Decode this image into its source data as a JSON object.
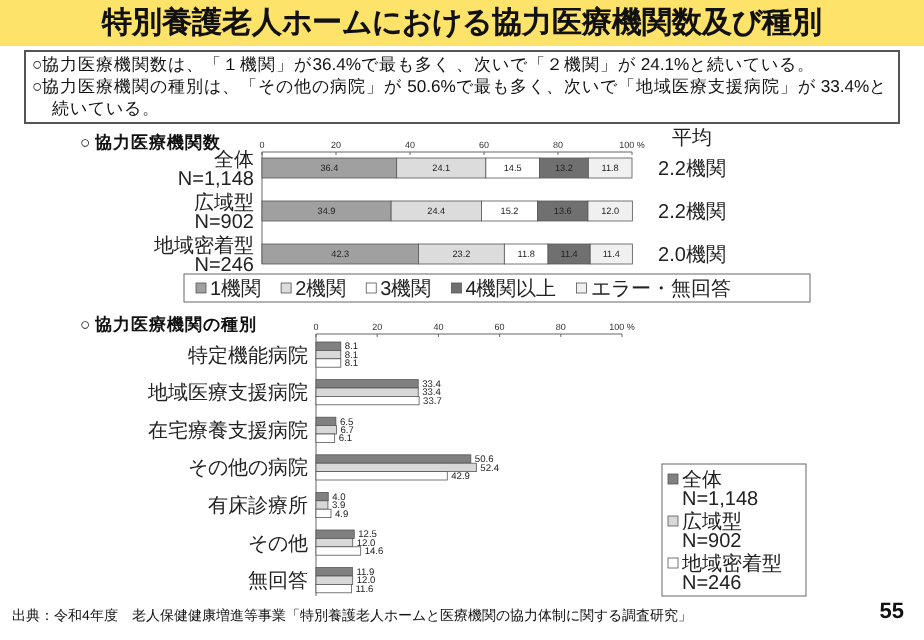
{
  "chart_data": [
    {
      "type": "other",
      "title": "特別養護老人ホームにおける協力医療機関数及び種別",
      "annotations": [
        "○協力医療機関数は、「１機関」が36.4%で最も多く 、次いで「２機関」が 24.1%と続いている。",
        "○協力医療機関の種別は、「その他の病院」が 50.6%で最も多く、次いで「地域医療支援病院」が 33.4%と続いている。",
        "出典：令和4年度　老人保健健康増進等事業「特別養護老人ホームと医療機関の協力体制に関する調査研究」",
        "55"
      ]
    },
    {
      "type": "bar",
      "orientation": "horizontal",
      "stacked": true,
      "title": "○ 協力医療機関数",
      "categories": [
        "全体\nN=1,148",
        "広域型\nN=902",
        "地域密着型\nN=246"
      ],
      "series": [
        {
          "name": "1機関",
          "color": "#a0a0a0",
          "values": [
            36.4,
            34.9,
            42.3
          ],
          "value_labels": [
            "36.4",
            "34.9",
            "42.3"
          ]
        },
        {
          "name": "2機関",
          "color": "#dcdcdc",
          "values": [
            24.1,
            24.4,
            23.2
          ],
          "value_labels": [
            "24.1",
            "24.4",
            "23.2"
          ]
        },
        {
          "name": "3機関",
          "color": "#ffffff",
          "values": [
            14.5,
            15.2,
            11.8
          ],
          "value_labels": [
            "14.5",
            "15.2",
            "11.8"
          ]
        },
        {
          "name": "4機関以上",
          "color": "#707070",
          "values": [
            13.2,
            13.6,
            11.4
          ],
          "value_labels": [
            "13.2",
            "13.6",
            "11.4"
          ]
        },
        {
          "name": "エラー・無回答",
          "color": "#f0f0f0",
          "values": [
            11.8,
            12.0,
            11.4
          ],
          "value_labels": [
            "11.8",
            "12.0",
            "11.4"
          ]
        }
      ],
      "xlim": [
        0,
        100
      ],
      "xticks": [
        0,
        20,
        40,
        60,
        80,
        {
          "value": 100,
          "label": "100 %"
        }
      ],
      "legend": "bottom",
      "annotations": [
        "平均",
        "2.2機関",
        "2.2機関",
        "2.0機関"
      ]
    },
    {
      "type": "bar",
      "orientation": "horizontal",
      "title": "○ 協力医療機関の種別",
      "categories": [
        "特定機能病院",
        "地域医療支援病院",
        "在宅療養支援病院",
        "その他の病院",
        "有床診療所",
        "その他",
        "無回答"
      ],
      "series": [
        {
          "name": "全体\nN=1,148",
          "color": "#808080",
          "values": [
            8.1,
            33.4,
            6.5,
            50.6,
            4.0,
            12.5,
            11.9
          ],
          "value_labels": [
            "8.1",
            "33.4",
            "6.5",
            "50.6",
            "4.0",
            "12.5",
            "11.9"
          ]
        },
        {
          "name": "広域型\nN=902",
          "color": "#d8d8d8",
          "values": [
            8.1,
            33.4,
            6.7,
            52.4,
            3.9,
            12.0,
            12.0
          ],
          "value_labels": [
            "8.1",
            "33.4",
            "6.7",
            "52.4",
            "3.9",
            "12.0",
            "12.0"
          ]
        },
        {
          "name": "地域密着型\nN=246",
          "color": "#ffffff",
          "values": [
            8.1,
            33.7,
            6.1,
            42.9,
            4.9,
            14.6,
            11.6
          ],
          "value_labels": [
            "8.1",
            "33.7",
            "6.1",
            "42.9",
            "4.9",
            "14.6",
            "11.6"
          ]
        }
      ],
      "xlim": [
        0,
        100
      ],
      "xticks": [
        0,
        20,
        40,
        60,
        80,
        {
          "value": 100,
          "label": "100 %"
        }
      ],
      "legend": "bottom right"
    }
  ]
}
